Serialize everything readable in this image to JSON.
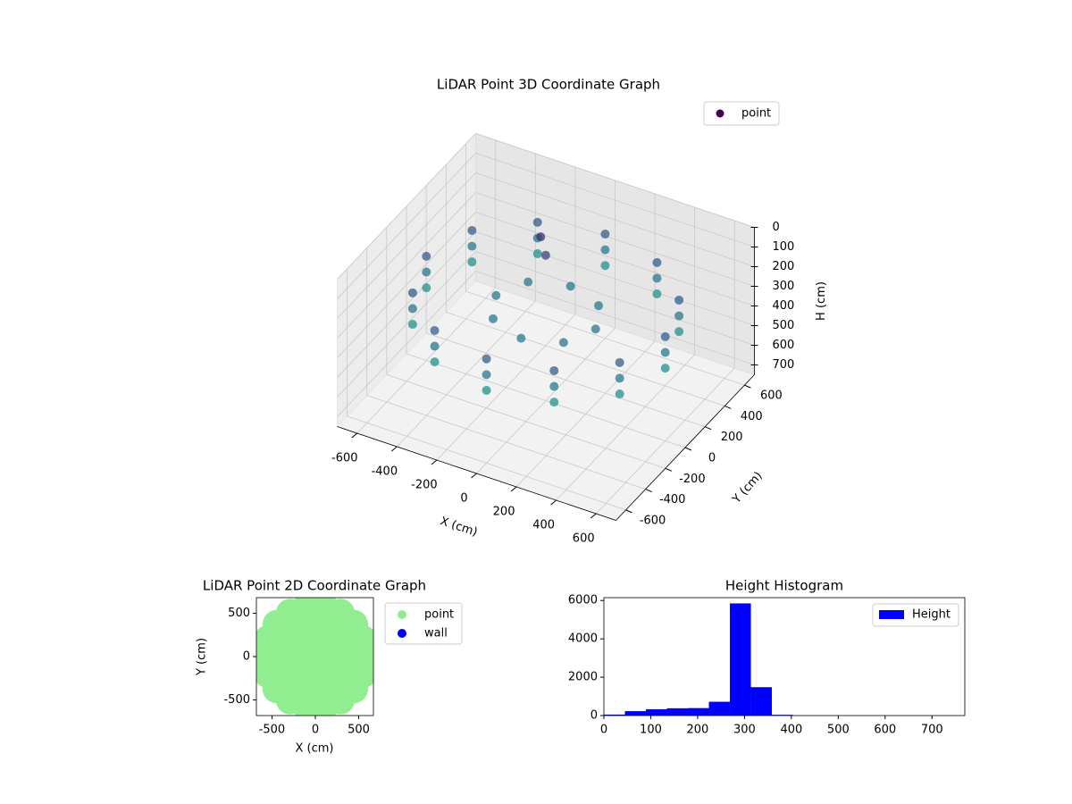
{
  "chart_data": [
    {
      "type": "scatter3d",
      "title": "LiDAR Point 3D Coordinate Graph",
      "xlabel": "X (cm)",
      "ylabel": "Y (cm)",
      "zlabel": "H (cm)",
      "legend": "upper right",
      "grid": true,
      "z_inverted": true,
      "xlim": [
        -700,
        700
      ],
      "ylim": [
        -700,
        700
      ],
      "zlim": [
        0,
        750
      ],
      "xticks": [
        -600,
        -400,
        -200,
        0,
        200,
        400,
        600
      ],
      "yticks": [
        -600,
        -400,
        -200,
        0,
        200,
        400,
        600
      ],
      "zticks": [
        0,
        100,
        200,
        300,
        400,
        500,
        600,
        700
      ],
      "series": [
        {
          "name": "point",
          "color": "#440154",
          "cmap": "viridis",
          "x": [
            600,
            520,
            300,
            0,
            -300,
            -520,
            -600,
            -520,
            -300,
            0,
            300,
            520,
            600,
            520,
            300,
            0,
            -300,
            -520,
            -600,
            -520,
            -300,
            0,
            300,
            520,
            600,
            520,
            300,
            0,
            -300,
            -520,
            -600,
            -520,
            -300,
            0,
            300,
            520,
            250,
            177,
            0,
            -177,
            -250,
            -177,
            0,
            177,
            -100,
            -150
          ],
          "y": [
            0,
            300,
            520,
            600,
            520,
            300,
            0,
            -300,
            -520,
            -600,
            -520,
            -300,
            0,
            300,
            520,
            600,
            520,
            300,
            0,
            -300,
            -520,
            -600,
            -520,
            -300,
            0,
            300,
            520,
            600,
            520,
            300,
            0,
            -300,
            -520,
            -600,
            -520,
            -300,
            0,
            177,
            250,
            177,
            0,
            -177,
            -250,
            -177,
            200,
            250
          ],
          "h": [
            220,
            220,
            220,
            220,
            220,
            220,
            220,
            220,
            220,
            220,
            220,
            220,
            300,
            300,
            300,
            300,
            300,
            300,
            300,
            300,
            300,
            300,
            300,
            300,
            380,
            380,
            380,
            380,
            380,
            380,
            380,
            380,
            380,
            380,
            380,
            380,
            300,
            300,
            300,
            300,
            300,
            300,
            300,
            300,
            150,
            100
          ]
        }
      ]
    },
    {
      "type": "scatter",
      "title": "LiDAR Point 2D Coordinate Graph",
      "xlabel": "X (cm)",
      "ylabel": "Y (cm)",
      "legend": "outside upper right",
      "xlim": [
        -680,
        670
      ],
      "ylim": [
        -680,
        680
      ],
      "xticks": [
        -500,
        0,
        500
      ],
      "yticks": [
        -500,
        0,
        500
      ],
      "series": [
        {
          "name": "point",
          "color": "#90ee90",
          "x": [
            0,
            200,
            141,
            0,
            -141,
            -200,
            -141,
            0,
            141,
            400,
            346,
            200,
            0,
            -200,
            -346,
            -400,
            -346,
            -200,
            0,
            200,
            346,
            580,
            545,
            444,
            290,
            101,
            -101,
            -290,
            -444,
            -545,
            -580,
            -545,
            -444,
            -290,
            -101,
            101,
            290,
            444,
            545
          ],
          "y": [
            0,
            0,
            141,
            200,
            141,
            0,
            -141,
            -200,
            -141,
            0,
            200,
            346,
            400,
            346,
            200,
            0,
            -200,
            -346,
            -400,
            -346,
            -200,
            0,
            198,
            373,
            502,
            571,
            571,
            502,
            373,
            198,
            0,
            -198,
            -373,
            -502,
            -571,
            -571,
            -502,
            -373,
            -198
          ]
        },
        {
          "name": "wall",
          "color": "#0000ff",
          "x": [],
          "y": []
        }
      ]
    },
    {
      "type": "histogram",
      "title": "Height Histogram",
      "legend": "upper right",
      "xlim": [
        0,
        770
      ],
      "ylim": [
        0,
        6150
      ],
      "xticks": [
        0,
        100,
        200,
        300,
        400,
        500,
        600,
        700
      ],
      "yticks": [
        0,
        2000,
        4000,
        6000
      ],
      "series": [
        {
          "name": "Height",
          "color": "#0000ff",
          "bins": [
            0,
            44.8,
            89.6,
            134.4,
            179.2,
            224,
            268.8,
            313.6,
            358.4,
            403.2,
            448,
            492.8,
            537.6,
            582.4,
            627.2,
            672,
            716.8,
            761.6
          ],
          "values": [
            50,
            230,
            330,
            380,
            390,
            720,
            5850,
            1480,
            40,
            5,
            5,
            3,
            3,
            3,
            2,
            2,
            1
          ]
        }
      ]
    }
  ]
}
